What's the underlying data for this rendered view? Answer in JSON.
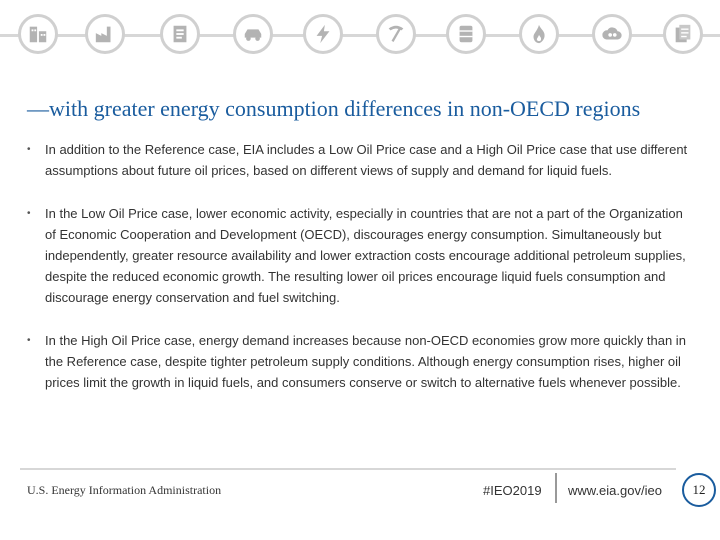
{
  "header": {
    "icons": [
      "building-icon",
      "factory-icon",
      "document-icon",
      "car-icon",
      "lightning-icon",
      "mining-icon",
      "oil-drop-icon",
      "oil-barrel-icon",
      "flame-icon",
      "co2-icon",
      "report-icon"
    ]
  },
  "slide": {
    "title": "—with greater energy consumption differences in non-OECD regions",
    "bullets": [
      "In addition to the Reference case, EIA includes a Low Oil Price case and a High Oil Price case that use different assumptions about future oil prices, based on different views of supply and demand for liquid fuels.",
      "In the Low Oil Price case, lower economic activity, especially in countries that are not a part of the Organization of Economic Cooperation and Development (OECD), discourages energy consumption. Simultaneously but independently, greater resource availability and lower extraction costs encourage additional petroleum supplies, despite the reduced economic growth. The resulting lower oil prices encourage liquid fuels consumption and discourage energy conservation and fuel switching.",
      "In the High Oil Price case, energy demand increases because non-OECD economies grow more quickly than in the Reference case, despite tighter petroleum supply conditions. Although energy consumption rises, higher oil prices limit the growth in liquid fuels, and consumers conserve or switch to alternative fuels whenever possible."
    ]
  },
  "footer": {
    "org": "U.S. Energy Information Administration",
    "tag": "#IEO2019",
    "url": "www.eia.gov/ieo",
    "page": "12"
  },
  "colors": {
    "title": "#1a5c9e",
    "icon_ring": "#d0d0d0",
    "icon_glyph": "#b3b3b3"
  }
}
